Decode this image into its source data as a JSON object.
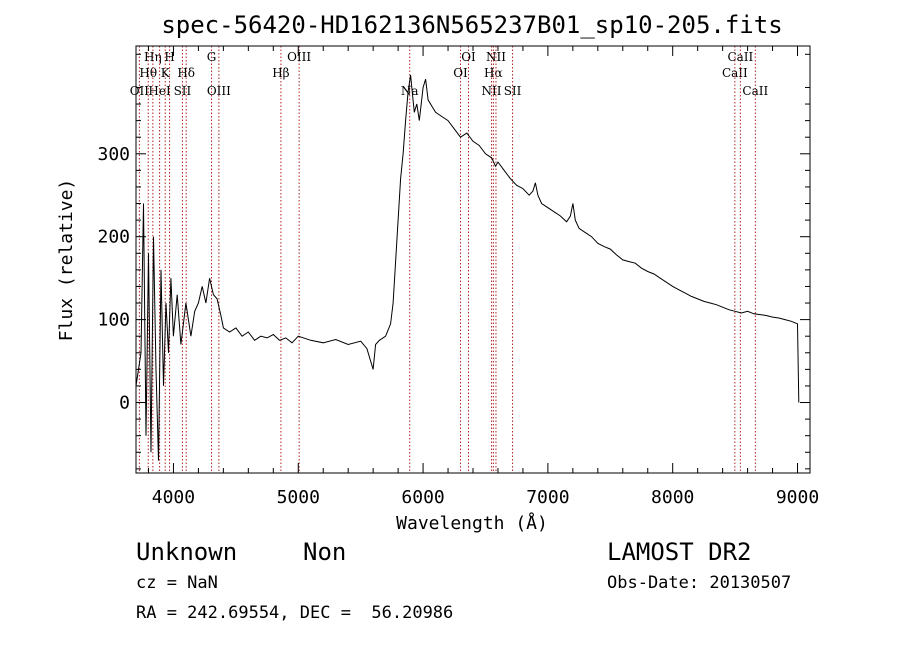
{
  "chart_data": {
    "type": "line",
    "title": "spec-56420-HD162136N565237B01_sp10-205.fits",
    "xlabel": "Wavelength (Å)",
    "ylabel": "Flux (relative)",
    "xlim": [
      3700,
      9100
    ],
    "ylim": [
      -85,
      430
    ],
    "xticks": [
      4000,
      5000,
      6000,
      7000,
      8000,
      9000
    ],
    "yticks": [
      0,
      100,
      200,
      300
    ],
    "grid": false,
    "series": [
      {
        "color": "#000000",
        "points": [
          [
            3700,
            20
          ],
          [
            3740,
            60
          ],
          [
            3760,
            240
          ],
          [
            3780,
            -40
          ],
          [
            3800,
            180
          ],
          [
            3820,
            -60
          ],
          [
            3840,
            200
          ],
          [
            3860,
            40
          ],
          [
            3880,
            -70
          ],
          [
            3900,
            160
          ],
          [
            3920,
            20
          ],
          [
            3940,
            120
          ],
          [
            3960,
            60
          ],
          [
            3980,
            150
          ],
          [
            4000,
            80
          ],
          [
            4030,
            130
          ],
          [
            4060,
            70
          ],
          [
            4100,
            120
          ],
          [
            4140,
            80
          ],
          [
            4170,
            110
          ],
          [
            4200,
            120
          ],
          [
            4230,
            140
          ],
          [
            4260,
            120
          ],
          [
            4290,
            150
          ],
          [
            4320,
            130
          ],
          [
            4350,
            125
          ],
          [
            4380,
            105
          ],
          [
            4400,
            90
          ],
          [
            4450,
            85
          ],
          [
            4500,
            90
          ],
          [
            4550,
            80
          ],
          [
            4600,
            85
          ],
          [
            4650,
            75
          ],
          [
            4700,
            80
          ],
          [
            4750,
            78
          ],
          [
            4800,
            82
          ],
          [
            4850,
            75
          ],
          [
            4900,
            78
          ],
          [
            4950,
            72
          ],
          [
            5000,
            80
          ],
          [
            5100,
            75
          ],
          [
            5200,
            72
          ],
          [
            5300,
            76
          ],
          [
            5400,
            70
          ],
          [
            5500,
            74
          ],
          [
            5550,
            65
          ],
          [
            5600,
            40
          ],
          [
            5620,
            70
          ],
          [
            5650,
            75
          ],
          [
            5700,
            80
          ],
          [
            5740,
            95
          ],
          [
            5760,
            120
          ],
          [
            5780,
            170
          ],
          [
            5800,
            220
          ],
          [
            5820,
            270
          ],
          [
            5840,
            300
          ],
          [
            5860,
            340
          ],
          [
            5880,
            375
          ],
          [
            5900,
            395
          ],
          [
            5910,
            380
          ],
          [
            5930,
            350
          ],
          [
            5950,
            360
          ],
          [
            5970,
            340
          ],
          [
            6000,
            380
          ],
          [
            6020,
            390
          ],
          [
            6040,
            365
          ],
          [
            6080,
            355
          ],
          [
            6100,
            350
          ],
          [
            6150,
            345
          ],
          [
            6200,
            340
          ],
          [
            6250,
            330
          ],
          [
            6300,
            320
          ],
          [
            6350,
            325
          ],
          [
            6400,
            315
          ],
          [
            6450,
            310
          ],
          [
            6500,
            300
          ],
          [
            6550,
            295
          ],
          [
            6580,
            285
          ],
          [
            6600,
            290
          ],
          [
            6650,
            280
          ],
          [
            6700,
            270
          ],
          [
            6750,
            262
          ],
          [
            6800,
            258
          ],
          [
            6850,
            250
          ],
          [
            6880,
            255
          ],
          [
            6900,
            265
          ],
          [
            6920,
            250
          ],
          [
            6950,
            240
          ],
          [
            7000,
            235
          ],
          [
            7050,
            230
          ],
          [
            7100,
            225
          ],
          [
            7150,
            218
          ],
          [
            7180,
            225
          ],
          [
            7200,
            240
          ],
          [
            7220,
            220
          ],
          [
            7250,
            210
          ],
          [
            7300,
            205
          ],
          [
            7350,
            200
          ],
          [
            7400,
            192
          ],
          [
            7450,
            188
          ],
          [
            7500,
            185
          ],
          [
            7550,
            178
          ],
          [
            7600,
            172
          ],
          [
            7650,
            170
          ],
          [
            7700,
            168
          ],
          [
            7750,
            162
          ],
          [
            7800,
            158
          ],
          [
            7850,
            155
          ],
          [
            7900,
            150
          ],
          [
            7950,
            145
          ],
          [
            8000,
            140
          ],
          [
            8050,
            136
          ],
          [
            8100,
            132
          ],
          [
            8150,
            128
          ],
          [
            8200,
            125
          ],
          [
            8250,
            122
          ],
          [
            8300,
            120
          ],
          [
            8350,
            118
          ],
          [
            8400,
            115
          ],
          [
            8450,
            112
          ],
          [
            8500,
            110
          ],
          [
            8550,
            108
          ],
          [
            8600,
            110
          ],
          [
            8650,
            107
          ],
          [
            8700,
            106
          ],
          [
            8750,
            105
          ],
          [
            8800,
            103
          ],
          [
            8850,
            102
          ],
          [
            8900,
            100
          ],
          [
            8950,
            98
          ],
          [
            9000,
            95
          ],
          [
            9010,
            0
          ]
        ]
      }
    ],
    "lines": [
      {
        "label": "OII",
        "wl": 3727,
        "row": 3
      },
      {
        "label": "Hθ",
        "wl": 3798,
        "row": 2
      },
      {
        "label": "Hη",
        "wl": 3835,
        "row": 1
      },
      {
        "label": "HeI",
        "wl": 3889,
        "row": 3
      },
      {
        "label": "K",
        "wl": 3934,
        "row": 2
      },
      {
        "label": "H",
        "wl": 3969,
        "row": 1
      },
      {
        "label": "SII",
        "wl": 4072,
        "row": 3
      },
      {
        "label": "Hδ",
        "wl": 4102,
        "row": 2
      },
      {
        "label": "G",
        "wl": 4305,
        "row": 1
      },
      {
        "label": "OIII",
        "wl": 4364,
        "row": 3
      },
      {
        "label": "Hβ",
        "wl": 4861,
        "row": 2
      },
      {
        "label": "OIII",
        "wl": 5007,
        "row": 1
      },
      {
        "label": "Na",
        "wl": 5893,
        "row": 3
      },
      {
        "label": "OI",
        "wl": 6300,
        "row": 2
      },
      {
        "label": "OI",
        "wl": 6364,
        "row": 1
      },
      {
        "label": "NII",
        "wl": 6548,
        "row": 3
      },
      {
        "label": "Hα",
        "wl": 6563,
        "row": 2
      },
      {
        "label": "NII",
        "wl": 6584,
        "row": 1
      },
      {
        "label": "SII",
        "wl": 6717,
        "row": 3
      },
      {
        "label": "CaII",
        "wl": 8498,
        "row": 2
      },
      {
        "label": "CaII",
        "wl": 8542,
        "row": 1
      },
      {
        "label": "CaII",
        "wl": 8662,
        "row": 3
      }
    ]
  },
  "info": {
    "class": "Unknown",
    "subclass": "Non",
    "survey": "LAMOST DR2",
    "cz": "cz = NaN",
    "obs_date": "Obs-Date: 20130507",
    "radec": "RA = 242.69554, DEC =  56.20986"
  }
}
